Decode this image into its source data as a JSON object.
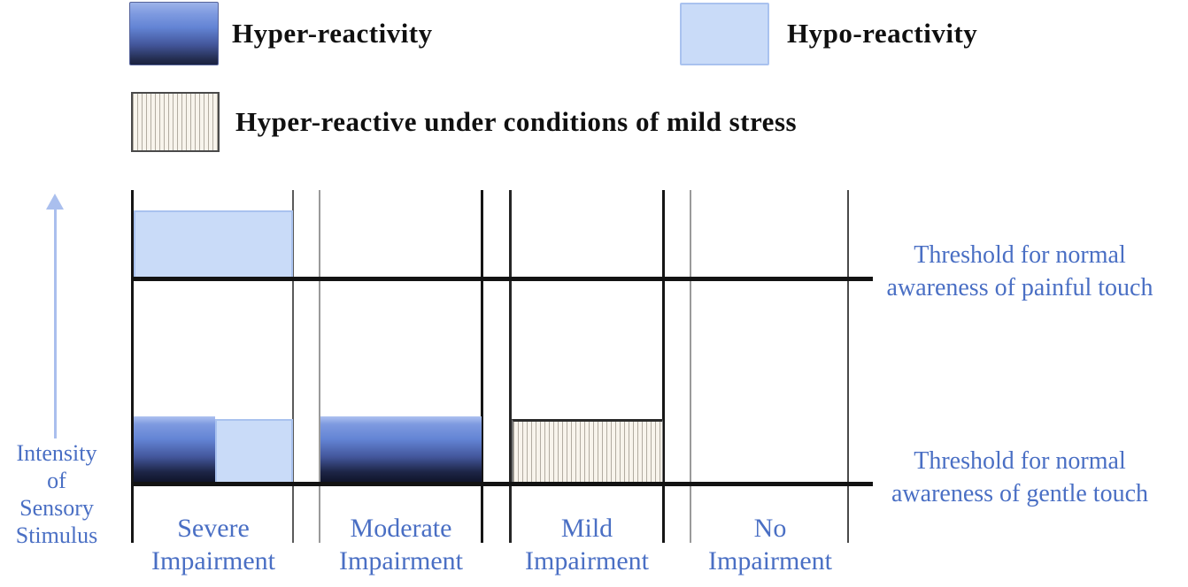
{
  "figure": {
    "legend": {
      "hyper_label": "Hyper-reactivity",
      "hypo_label": "Hypo-reactivity",
      "stress_label": "Hyper-reactive under conditions of mild stress"
    },
    "y_axis": {
      "line1": "Intensity",
      "line2": "of",
      "line3": "Sensory",
      "line4": "Stimulus"
    },
    "thresholds": {
      "painful_line1": "Threshold for normal",
      "painful_line2": "awareness of painful touch",
      "gentle_line1": "Threshold for normal",
      "gentle_line2": "awareness of gentle touch"
    },
    "categories": [
      {
        "line1": "Severe",
        "line2": "Impairment"
      },
      {
        "line1": "Moderate",
        "line2": "Impairment"
      },
      {
        "line1": "Mild",
        "line2": "Impairment"
      },
      {
        "line1": "No",
        "line2": "Impairment"
      }
    ]
  },
  "colors": {
    "label_blue": "#4a6fc4",
    "hypo_fill": "#c9dbf8",
    "hypo_border": "#a9c2ef",
    "hyper_gradient_top": "#aec2f0",
    "hyper_gradient_bottom": "#10152b",
    "stress_fill": "#f8f4ec",
    "stress_hatch_line": "#787164",
    "structure_line_black": "#131313",
    "arrow_blue": "#aabfee"
  },
  "chart_data": {
    "type": "area",
    "title": "",
    "xlabel": "",
    "ylabel": "Intensity of Sensory Stimulus",
    "categories": [
      "Severe Impairment",
      "Moderate Impairment",
      "Mild Impairment",
      "No Impairment"
    ],
    "reference_lines": [
      {
        "name": "Threshold for normal awareness of painful touch",
        "position": "upper"
      },
      {
        "name": "Threshold for normal awareness of gentle touch",
        "position": "lower"
      }
    ],
    "legend_entries": [
      "Hyper-reactivity",
      "Hypo-reactivity",
      "Hyper-reactive under conditions of mild stress"
    ],
    "legend_position": "top",
    "grid": false,
    "zones": [
      {
        "category": "Severe Impairment",
        "reactivity": "hypo-reactivity",
        "location": "sits above threshold for painful touch",
        "width_of_column": "full"
      },
      {
        "category": "Severe Impairment",
        "reactivity": "hyper-reactivity",
        "location": "sits above threshold for gentle touch",
        "width_of_column": "left half"
      },
      {
        "category": "Severe Impairment",
        "reactivity": "hypo-reactivity",
        "location": "sits above threshold for gentle touch",
        "width_of_column": "right half"
      },
      {
        "category": "Moderate Impairment",
        "reactivity": "hyper-reactivity",
        "location": "sits above threshold for gentle touch",
        "width_of_column": "full"
      },
      {
        "category": "Mild Impairment",
        "reactivity": "hyper-reactive under conditions of mild stress",
        "location": "sits above threshold for gentle touch",
        "width_of_column": "full"
      },
      {
        "category": "No Impairment",
        "reactivity": "none",
        "location": "",
        "width_of_column": ""
      }
    ]
  }
}
